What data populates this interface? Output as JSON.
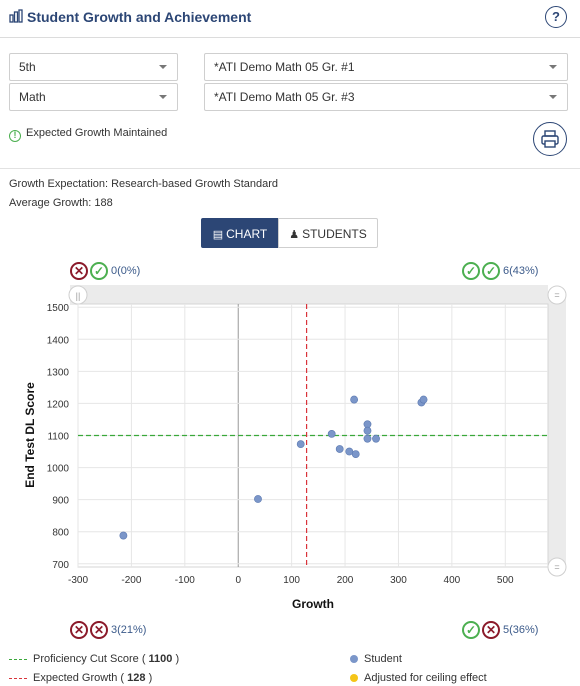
{
  "header": {
    "title": "Student Growth and Achievement",
    "help_symbol": "?"
  },
  "filters": {
    "grade": "5th",
    "subject": "Math",
    "test_start": "*ATI Demo Math 05 Gr. #1",
    "test_end": "*ATI Demo Math 05 Gr. #3"
  },
  "status": {
    "text": "Expected Growth Maintained"
  },
  "info": {
    "growth_expectation": "Growth Expectation: Research-based Growth Standard",
    "average_growth": "Average Growth: 188"
  },
  "view_toggle": {
    "chart_label": "CHART",
    "students_label": "STUDENTS",
    "active": "CHART"
  },
  "quadrants": {
    "top_left": "0(0%)",
    "top_right": "6(43%)",
    "bottom_left": "3(21%)",
    "bottom_right": "5(36%)"
  },
  "legend": {
    "proficiency_label": "Proficiency Cut Score",
    "proficiency_value": "1100",
    "expected_label": "Expected Growth",
    "expected_value": "128",
    "student_label": "Student",
    "ceiling_label": "Adjusted for ceiling effect"
  },
  "colors": {
    "primary": "#2c4675",
    "student_point": "#7b96c9",
    "ceiling_point": "#f5c518",
    "proficiency_line": "#3aa83a",
    "expected_line": "#d9333a",
    "bad_badge": "#8b1a2a",
    "good_badge": "#4caf50"
  },
  "chart_data": {
    "type": "scatter",
    "xlabel": "Growth",
    "ylabel": "End Test DL Score",
    "xlim": [
      -300,
      580
    ],
    "ylim": [
      690,
      1510
    ],
    "x_ticks": [
      -300,
      -200,
      -100,
      0,
      100,
      200,
      300,
      400,
      500
    ],
    "y_ticks": [
      700,
      800,
      900,
      1000,
      1100,
      1200,
      1300,
      1400,
      1500
    ],
    "proficiency_cut": 1100,
    "expected_growth": 128,
    "grid": true,
    "series": [
      {
        "points": [
          {
            "x": -215,
            "y": 788
          },
          {
            "x": 37,
            "y": 902
          },
          {
            "x": 117,
            "y": 1073
          },
          {
            "x": 175,
            "y": 1105
          },
          {
            "x": 190,
            "y": 1058
          },
          {
            "x": 208,
            "y": 1050
          },
          {
            "x": 217,
            "y": 1212
          },
          {
            "x": 220,
            "y": 1042
          },
          {
            "x": 242,
            "y": 1135
          },
          {
            "x": 242,
            "y": 1115
          },
          {
            "x": 242,
            "y": 1090
          },
          {
            "x": 258,
            "y": 1090
          },
          {
            "x": 343,
            "y": 1203
          },
          {
            "x": 347,
            "y": 1212
          }
        ]
      }
    ]
  }
}
